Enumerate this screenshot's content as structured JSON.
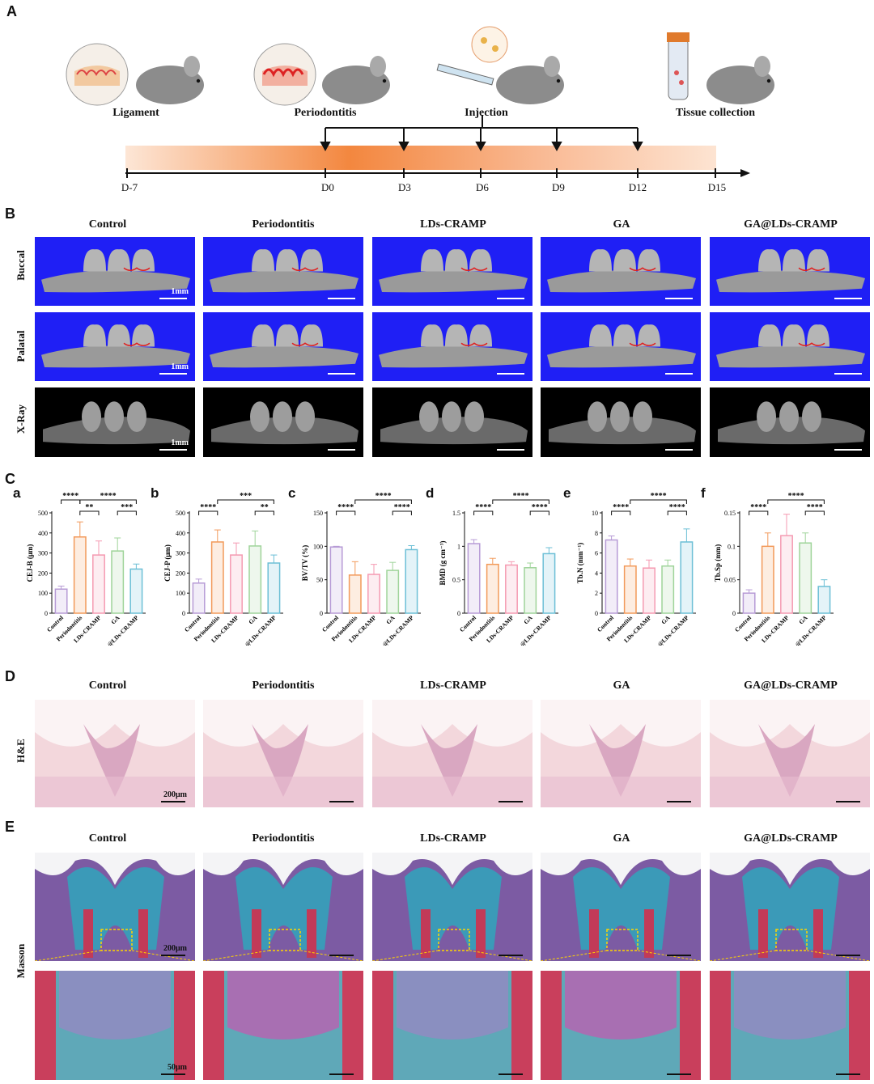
{
  "panels": {
    "A": "A",
    "B": "B",
    "C": "C",
    "D": "D",
    "E": "E"
  },
  "timeline": {
    "stages": [
      "Ligament",
      "Periodontitis",
      "Injection",
      "Tissue collection"
    ],
    "days": [
      "D-7",
      "D0",
      "D3",
      "D6",
      "D9",
      "D12",
      "D15"
    ]
  },
  "groups": [
    "Control",
    "Periodontitis",
    "LDs-CRAMP",
    "GA",
    "GA@LDs-CRAMP"
  ],
  "panelB": {
    "rows": [
      "Buccal",
      "Palatal",
      "X-Ray"
    ],
    "scale": "1mm"
  },
  "panelD": {
    "row": "H&E",
    "scale": "200μm"
  },
  "panelE": {
    "row": "Masson",
    "scale_top": "200μm",
    "scale_bottom": "50μm"
  },
  "colors": {
    "Control": "#b79bd6",
    "Periodontitis": "#f29a5a",
    "LDs-CRAMP": "#f59ab2",
    "GA": "#9fd49a",
    "GA@LDs-CRAMP": "#6cbfd6",
    "microct_bg": "#1f1ff5"
  },
  "chart_data": [
    {
      "type": "bar",
      "label": "a",
      "ylabel": "CEJ-B (μm)",
      "categories": [
        "Control",
        "Periodontitis",
        "LDs-CRAMP",
        "GA",
        "GA@LDs-CRAMP"
      ],
      "values": [
        120,
        380,
        290,
        310,
        220
      ],
      "errors": [
        15,
        75,
        70,
        65,
        25
      ],
      "ylim": [
        0,
        500
      ],
      "yticks": [
        0,
        100,
        200,
        300,
        400,
        500
      ],
      "significance": [
        {
          "from": 0,
          "to": 1,
          "label": "****",
          "level": 0
        },
        {
          "from": 1,
          "to": 4,
          "label": "****",
          "level": 0
        },
        {
          "from": 1,
          "to": 2,
          "label": "**",
          "level": 1
        },
        {
          "from": 3,
          "to": 4,
          "label": "***",
          "level": 1
        }
      ]
    },
    {
      "type": "bar",
      "label": "b",
      "ylabel": "CEJ-P (μm)",
      "categories": [
        "Control",
        "Periodontitis",
        "LDs-CRAMP",
        "GA",
        "GA@LDs-CRAMP"
      ],
      "values": [
        150,
        355,
        290,
        335,
        250
      ],
      "errors": [
        20,
        60,
        60,
        75,
        40
      ],
      "ylim": [
        0,
        500
      ],
      "yticks": [
        0,
        100,
        200,
        300,
        400,
        500
      ],
      "significance": [
        {
          "from": 1,
          "to": 4,
          "label": "***",
          "level": 0
        },
        {
          "from": 0,
          "to": 1,
          "label": "****",
          "level": 1
        },
        {
          "from": 3,
          "to": 4,
          "label": "**",
          "level": 1
        }
      ]
    },
    {
      "type": "bar",
      "label": "c",
      "ylabel": "BV/TV (%)",
      "categories": [
        "Control",
        "Periodontitis",
        "LDs-CRAMP",
        "GA",
        "GA@LDs-CRAMP"
      ],
      "values": [
        99,
        57,
        58,
        64,
        95
      ],
      "errors": [
        1,
        20,
        15,
        12,
        6
      ],
      "ylim": [
        0,
        150
      ],
      "yticks": [
        0,
        50,
        100,
        150
      ],
      "significance": [
        {
          "from": 1,
          "to": 4,
          "label": "****",
          "level": 0
        },
        {
          "from": 0,
          "to": 1,
          "label": "****",
          "level": 1
        },
        {
          "from": 3,
          "to": 4,
          "label": "****",
          "level": 1
        }
      ]
    },
    {
      "type": "bar",
      "label": "d",
      "ylabel": "BMD (g cm⁻³)",
      "categories": [
        "Control",
        "Periodontitis",
        "LDs-CRAMP",
        "GA",
        "GA@LDs-CRAMP"
      ],
      "values": [
        1.04,
        0.73,
        0.72,
        0.68,
        0.89
      ],
      "errors": [
        0.06,
        0.09,
        0.05,
        0.07,
        0.09
      ],
      "ylim": [
        0,
        1.5
      ],
      "yticks": [
        0.0,
        0.5,
        1.0,
        1.5
      ],
      "significance": [
        {
          "from": 1,
          "to": 4,
          "label": "****",
          "level": 0
        },
        {
          "from": 0,
          "to": 1,
          "label": "****",
          "level": 1
        },
        {
          "from": 3,
          "to": 4,
          "label": "****",
          "level": 1
        }
      ]
    },
    {
      "type": "bar",
      "label": "e",
      "ylabel": "Tb.N (mm⁻¹)",
      "categories": [
        "Control",
        "Periodontitis",
        "LDs-CRAMP",
        "GA",
        "GA@LDs-CRAMP"
      ],
      "values": [
        7.3,
        4.7,
        4.5,
        4.7,
        7.1
      ],
      "errors": [
        0.4,
        0.7,
        0.8,
        0.6,
        1.3
      ],
      "ylim": [
        0,
        10
      ],
      "yticks": [
        0,
        2,
        4,
        6,
        8,
        10
      ],
      "significance": [
        {
          "from": 1,
          "to": 4,
          "label": "****",
          "level": 0
        },
        {
          "from": 0,
          "to": 1,
          "label": "****",
          "level": 1
        },
        {
          "from": 3,
          "to": 4,
          "label": "****",
          "level": 1
        }
      ]
    },
    {
      "type": "bar",
      "label": "f",
      "ylabel": "Tb.Sp (mm)",
      "categories": [
        "Control",
        "Periodontitis",
        "LDs-CRAMP",
        "GA",
        "GA@LDs-CRAMP"
      ],
      "values": [
        0.03,
        0.1,
        0.116,
        0.105,
        0.04
      ],
      "errors": [
        0.005,
        0.02,
        0.032,
        0.015,
        0.01
      ],
      "ylim": [
        0,
        0.15
      ],
      "yticks": [
        0.0,
        0.05,
        0.1,
        0.15
      ],
      "significance": [
        {
          "from": 1,
          "to": 4,
          "label": "****",
          "level": 0
        },
        {
          "from": 0,
          "to": 1,
          "label": "****",
          "level": 1
        },
        {
          "from": 3,
          "to": 4,
          "label": "****",
          "level": 1
        }
      ]
    }
  ]
}
